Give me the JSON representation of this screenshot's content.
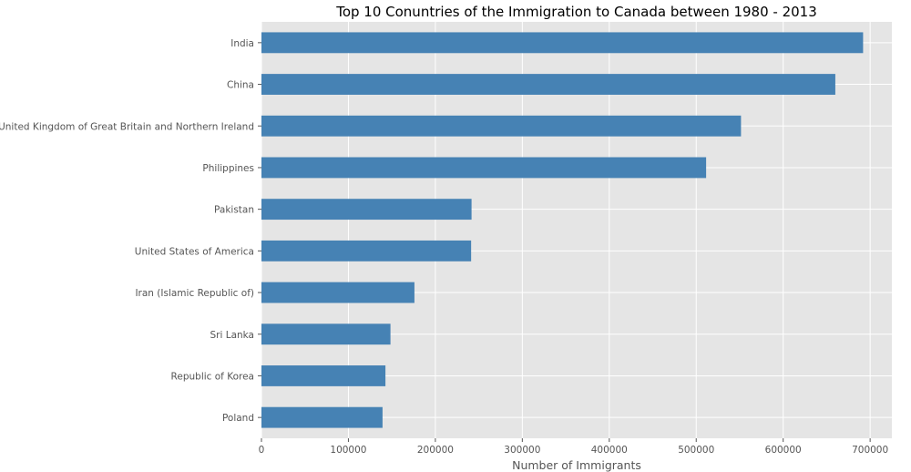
{
  "chart_data": {
    "type": "bar",
    "orientation": "horizontal",
    "title": "Top 10 Conuntries of the Immigration to Canada between 1980 - 2013",
    "xlabel": "Number of Immigrants",
    "ylabel": "",
    "categories": [
      "India",
      "China",
      "United Kingdom of Great Britain and Northern Ireland",
      "Philippines",
      "Pakistan",
      "United States of America",
      "Iran (Islamic Republic of)",
      "Sri Lanka",
      "Republic of Korea",
      "Poland"
    ],
    "values": [
      691904,
      659962,
      551500,
      511391,
      241600,
      241122,
      175923,
      148358,
      142581,
      139241
    ],
    "xlim": [
      0,
      725000
    ],
    "xticks": [
      0,
      100000,
      200000,
      300000,
      400000,
      500000,
      600000,
      700000
    ],
    "grid": true,
    "legend": "none",
    "colors": {
      "bar": "#4682b4",
      "plot_background": "#e5e5e5",
      "grid": "#ffffff"
    }
  }
}
